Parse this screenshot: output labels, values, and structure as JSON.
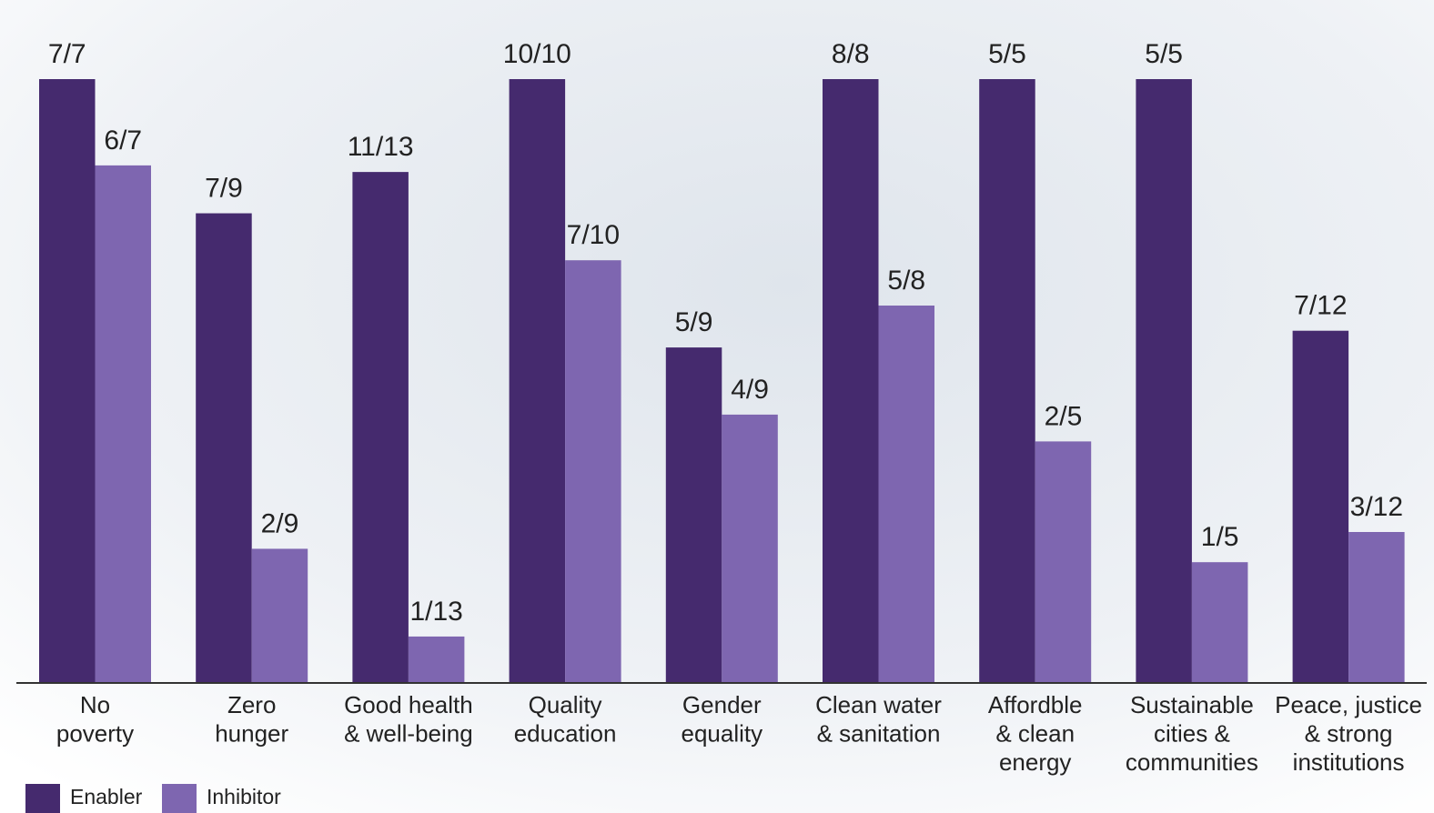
{
  "chart_data": {
    "type": "bar",
    "categories": [
      [
        "No",
        "poverty"
      ],
      [
        "Zero",
        "hunger"
      ],
      [
        "Good health",
        "& well-being"
      ],
      [
        "Quality",
        "education"
      ],
      [
        "Gender",
        "equality"
      ],
      [
        "Clean water",
        "& sanitation"
      ],
      [
        "Affordble",
        "& clean",
        "energy"
      ],
      [
        "Sustainable",
        "cities &",
        "communities"
      ],
      [
        "Peace, justice",
        "& strong",
        "institutions"
      ]
    ],
    "series": [
      {
        "name": "Enabler",
        "color": "#452a6e",
        "values": [
          1,
          0.7778,
          0.8462,
          1,
          0.5556,
          1,
          1,
          1,
          0.5833
        ],
        "value_labels": [
          "7/7",
          "7/9",
          "11/13",
          "10/10",
          "5/9",
          "8/8",
          "5/5",
          "5/5",
          "7/12"
        ]
      },
      {
        "name": "Inhibitor",
        "color": "#7e66b0",
        "values": [
          0.8571,
          0.2222,
          0.0769,
          0.7,
          0.4444,
          0.625,
          0.4,
          0.2,
          0.25
        ],
        "value_labels": [
          "6/7",
          "2/9",
          "1/13",
          "7/10",
          "4/9",
          "5/8",
          "2/5",
          "1/5",
          "3/12"
        ]
      }
    ],
    "ylim": [
      0,
      1
    ],
    "legend": "bottom-left"
  }
}
